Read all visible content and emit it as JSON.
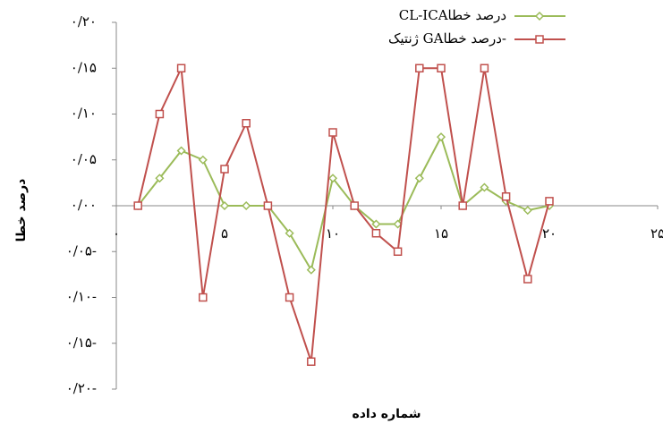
{
  "chart_data": {
    "type": "line",
    "x_label": "شماره داده",
    "y_label": "درصد خطا",
    "x": [
      1,
      2,
      3,
      4,
      5,
      6,
      7,
      8,
      9,
      10,
      11,
      12,
      13,
      14,
      15,
      16,
      17,
      18,
      19,
      20
    ],
    "series": [
      {
        "name": "CL-ICAدرصد خطا",
        "color": "#9bbb59",
        "marker": "diamond",
        "values": [
          0,
          0.03,
          0.06,
          0.05,
          0,
          0,
          0,
          -0.03,
          -0.07,
          0.03,
          0,
          -0.02,
          -0.02,
          0.03,
          0.075,
          0,
          0.02,
          0.005,
          -0.005,
          0
        ]
      },
      {
        "name": "ژنتیک GAدرصد خطا-",
        "color": "#c0504d",
        "marker": "square",
        "values": [
          0,
          0.1,
          0.15,
          -0.1,
          0.04,
          0.09,
          0,
          -0.1,
          -0.17,
          0.08,
          0,
          -0.03,
          -0.05,
          0.15,
          0.15,
          0,
          0.15,
          0.01,
          -0.08,
          0.005
        ]
      }
    ],
    "xlim": [
      0,
      25
    ],
    "xticks": [
      {
        "value": 0,
        "label": "۰"
      },
      {
        "value": 5,
        "label": "۵"
      },
      {
        "value": 10,
        "label": "۱۰"
      },
      {
        "value": 15,
        "label": "۱۵"
      },
      {
        "value": 20,
        "label": "۲۰"
      },
      {
        "value": 25,
        "label": "۲۵"
      }
    ],
    "ylim": [
      -0.2,
      0.2
    ],
    "yticks": [
      {
        "value": -0.2,
        "label": "۰/۲۰-"
      },
      {
        "value": -0.15,
        "label": "۰/۱۵-"
      },
      {
        "value": -0.1,
        "label": "۰/۱۰-"
      },
      {
        "value": -0.05,
        "label": "۰/۰۵-"
      },
      {
        "value": 0,
        "label": "۰/۰۰"
      },
      {
        "value": 0.05,
        "label": "۰/۰۵"
      },
      {
        "value": 0.1,
        "label": "۰/۱۰"
      },
      {
        "value": 0.15,
        "label": "۰/۱۵"
      },
      {
        "value": 0.2,
        "label": "۰/۲۰"
      }
    ],
    "legend": "top-right"
  }
}
